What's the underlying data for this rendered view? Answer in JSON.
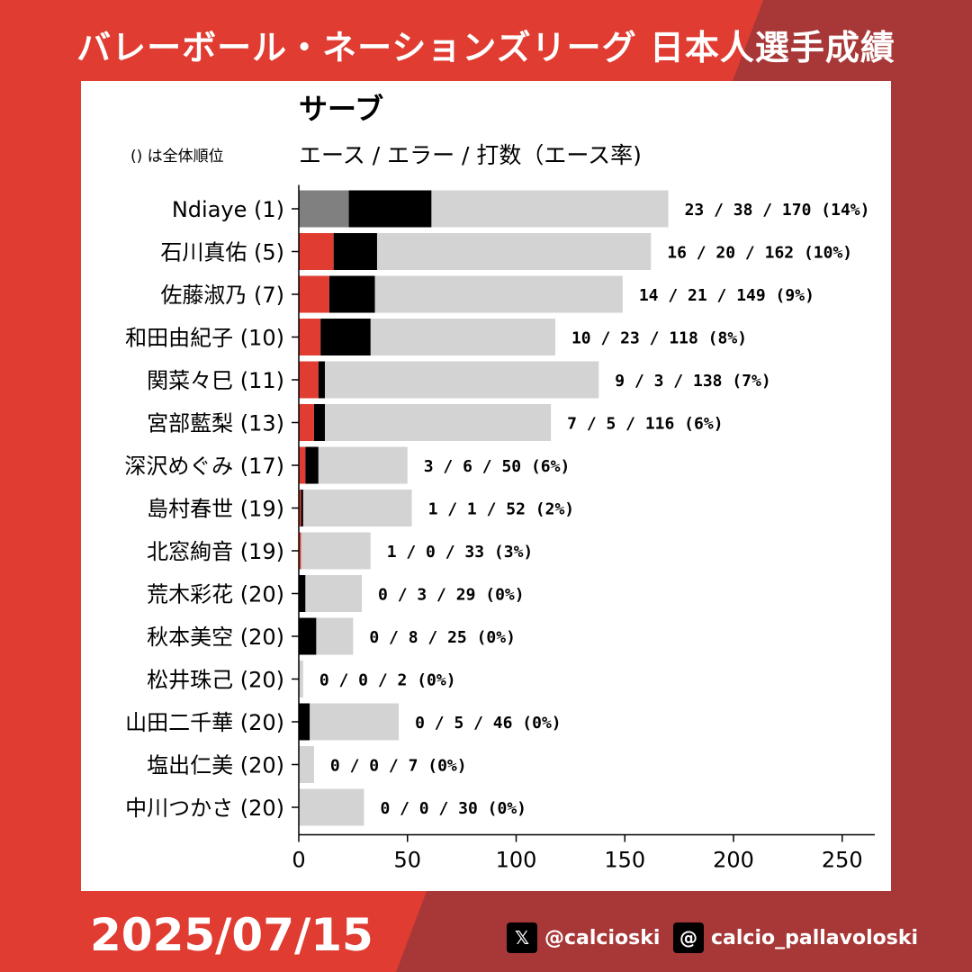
{
  "header": {
    "title": "バレーボール・ネーションズリーグ 日本人選手成績"
  },
  "footer": {
    "date": "2025/07/15",
    "x_handle": "@calcioski",
    "threads_handle": "calcio_pallavoloski"
  },
  "icons": {
    "x": "x-logo-icon",
    "threads": "threads-logo-icon"
  },
  "colors": {
    "background_red": "#e03c31",
    "background_dark_red": "#a83838",
    "ace_highlight": "#e03c31",
    "ace_foreign": "#808080",
    "error": "#000000",
    "total": "#d3d3d3"
  },
  "chart_data": {
    "type": "bar",
    "orientation": "horizontal",
    "stacked": true,
    "title": "サーブ",
    "subtitle": "エース / エラー / 打数（エース率)",
    "rank_note": "() は全体順位",
    "xlim": [
      0,
      265
    ],
    "xticks": [
      0,
      50,
      100,
      150,
      200,
      250
    ],
    "categories": [
      "Ndiaye (1)",
      "石川真佑 (5)",
      "佐藤淑乃 (7)",
      "和田由紀子 (10)",
      "関菜々巳 (11)",
      "宮部藍梨 (13)",
      "深沢めぐみ (17)",
      "島村春世 (19)",
      "北窓絢音 (19)",
      "荒木彩花 (20)",
      "秋本美空 (20)",
      "松井珠己 (20)",
      "山田二千華 (20)",
      "塩出仁美 (20)",
      "中川つかさ (20)"
    ],
    "series": [
      {
        "name": "エース",
        "values": [
          23,
          16,
          14,
          10,
          9,
          7,
          3,
          1,
          1,
          0,
          0,
          0,
          0,
          0,
          0
        ]
      },
      {
        "name": "エラー",
        "values": [
          38,
          20,
          21,
          23,
          3,
          5,
          6,
          1,
          0,
          3,
          8,
          0,
          5,
          0,
          0
        ]
      },
      {
        "name": "打数",
        "values": [
          170,
          162,
          149,
          118,
          138,
          116,
          50,
          52,
          33,
          29,
          25,
          2,
          46,
          7,
          30
        ]
      }
    ],
    "data_labels": [
      "23 / 38 / 170 (14%)",
      "16 / 20 / 162 (10%)",
      "14 / 21 / 149 (9%)",
      "10 / 23 / 118 (8%)",
      "9 / 3 / 138 (7%)",
      "7 / 5 / 116 (6%)",
      "3 / 6 / 50 (6%)",
      "1 / 1 / 52 (2%)",
      "1 / 0 / 33 (3%)",
      "0 / 3 / 29 (0%)",
      "0 / 8 / 25 (0%)",
      "0 / 0 / 2 (0%)",
      "0 / 5 / 46 (0%)",
      "0 / 0 / 7 (0%)",
      "0 / 0 / 30 (0%)"
    ]
  }
}
